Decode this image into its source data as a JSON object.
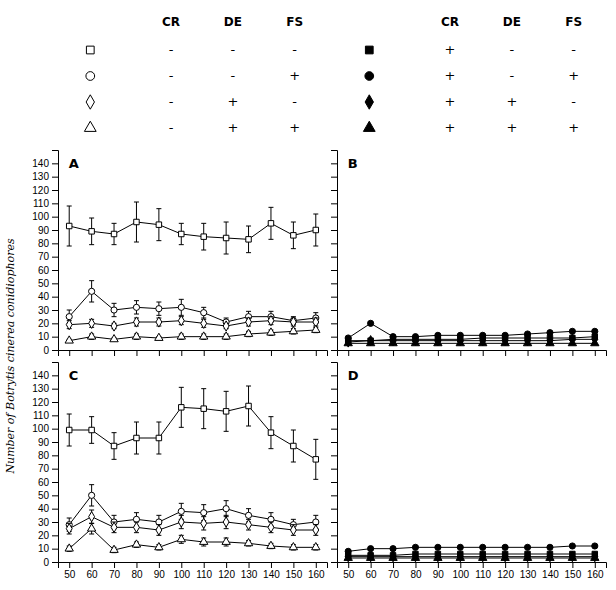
{
  "chart_data": [
    {
      "type": "line",
      "title": "A",
      "ylabel": "Number of Botrytis cinerea conidiophores",
      "x": [
        50,
        60,
        70,
        80,
        90,
        100,
        110,
        120,
        130,
        140,
        150,
        160
      ],
      "xlim": [
        45,
        165
      ],
      "xticks": [
        50,
        60,
        70,
        80,
        90,
        100,
        110,
        120,
        130,
        140,
        150,
        160
      ],
      "ylim": [
        0,
        150
      ],
      "yticks": [
        0,
        10,
        20,
        30,
        40,
        50,
        60,
        70,
        80,
        90,
        100,
        110,
        120,
        130,
        140
      ],
      "tick_labels": "y",
      "series": [
        {
          "marker": "square-open",
          "color": "black",
          "values": [
            93,
            89,
            87,
            96,
            94,
            87,
            85,
            84,
            83,
            95,
            86,
            90
          ],
          "errors": [
            15,
            10,
            8,
            15,
            12,
            8,
            10,
            12,
            10,
            12,
            10,
            12
          ]
        },
        {
          "marker": "circle-open",
          "color": "black",
          "values": [
            25,
            44,
            30,
            32,
            31,
            32,
            28,
            21,
            25,
            25,
            22,
            24
          ],
          "errors": [
            5,
            8,
            5,
            5,
            5,
            6,
            4,
            3,
            4,
            4,
            3,
            4
          ]
        },
        {
          "marker": "diamond-open",
          "color": "black",
          "values": [
            19,
            20,
            18,
            21,
            21,
            22,
            20,
            18,
            21,
            22,
            21,
            21
          ],
          "errors": [
            3,
            3,
            2,
            3,
            3,
            3,
            3,
            2,
            3,
            3,
            3,
            3
          ]
        },
        {
          "marker": "triangle-up-open",
          "color": "black",
          "values": [
            7,
            10,
            8,
            10,
            9,
            10,
            10,
            10,
            12,
            13,
            14,
            15
          ],
          "errors": [
            1,
            2,
            1,
            2,
            1,
            2,
            2,
            2,
            2,
            2,
            2,
            2
          ]
        }
      ]
    },
    {
      "type": "line",
      "title": "B",
      "x": [
        50,
        60,
        70,
        80,
        90,
        100,
        110,
        120,
        130,
        140,
        150,
        160
      ],
      "xlim": [
        45,
        165
      ],
      "xticks": [
        50,
        60,
        70,
        80,
        90,
        100,
        110,
        120,
        130,
        140,
        150,
        160
      ],
      "ylim": [
        0,
        150
      ],
      "yticks": [
        0,
        10,
        20,
        30,
        40,
        50,
        60,
        70,
        80,
        90,
        100,
        110,
        120,
        130,
        140
      ],
      "tick_labels": false,
      "series": [
        {
          "marker": "square",
          "color": "black",
          "values": [
            7,
            7,
            8,
            8,
            8,
            8,
            9,
            9,
            9,
            9,
            9,
            10
          ]
        },
        {
          "marker": "circle",
          "color": "black",
          "values": [
            9,
            20,
            10,
            10,
            11,
            11,
            11,
            11,
            12,
            13,
            14,
            14
          ]
        },
        {
          "marker": "diamond",
          "color": "black",
          "values": [
            6,
            7,
            7,
            7,
            7,
            7,
            7,
            7,
            7,
            7,
            8,
            8
          ]
        },
        {
          "marker": "triangle-up",
          "color": "black",
          "values": [
            5,
            5,
            5,
            5,
            5,
            5,
            5,
            5,
            5,
            5,
            5,
            5
          ]
        }
      ]
    },
    {
      "type": "line",
      "title": "C",
      "x": [
        50,
        60,
        70,
        80,
        90,
        100,
        110,
        120,
        130,
        140,
        150,
        160
      ],
      "xlim": [
        45,
        165
      ],
      "xticks": [
        50,
        60,
        70,
        80,
        90,
        100,
        110,
        120,
        130,
        140,
        150,
        160
      ],
      "ylim": [
        0,
        150
      ],
      "yticks": [
        0,
        10,
        20,
        30,
        40,
        50,
        60,
        70,
        80,
        90,
        100,
        110,
        120,
        130,
        140
      ],
      "series": [
        {
          "marker": "square-open",
          "color": "black",
          "values": [
            99,
            99,
            87,
            93,
            93,
            116,
            115,
            113,
            117,
            97,
            87,
            77
          ],
          "errors": [
            12,
            10,
            10,
            12,
            12,
            15,
            15,
            15,
            15,
            12,
            12,
            15
          ]
        },
        {
          "marker": "circle-open",
          "color": "black",
          "values": [
            28,
            50,
            30,
            32,
            30,
            38,
            37,
            40,
            35,
            32,
            28,
            30
          ],
          "errors": [
            5,
            8,
            5,
            5,
            5,
            6,
            6,
            6,
            5,
            5,
            4,
            5
          ]
        },
        {
          "marker": "diamond-open",
          "color": "black",
          "values": [
            25,
            34,
            26,
            26,
            24,
            30,
            29,
            30,
            28,
            26,
            24,
            24
          ],
          "errors": [
            4,
            5,
            4,
            4,
            4,
            5,
            5,
            5,
            4,
            4,
            4,
            4
          ]
        },
        {
          "marker": "triangle-up-open",
          "color": "black",
          "values": [
            10,
            25,
            9,
            13,
            11,
            17,
            15,
            15,
            14,
            12,
            11,
            11
          ],
          "errors": [
            2,
            4,
            2,
            2,
            2,
            3,
            3,
            3,
            2,
            2,
            2,
            2
          ]
        }
      ]
    },
    {
      "type": "line",
      "title": "D",
      "x": [
        50,
        60,
        70,
        80,
        90,
        100,
        110,
        120,
        130,
        140,
        150,
        160
      ],
      "xlim": [
        45,
        165
      ],
      "xticks": [
        50,
        60,
        70,
        80,
        90,
        100,
        110,
        120,
        130,
        140,
        150,
        160
      ],
      "ylim": [
        0,
        150
      ],
      "yticks": [
        0,
        10,
        20,
        30,
        40,
        50,
        60,
        70,
        80,
        90,
        100,
        110,
        120,
        130,
        140
      ],
      "tick_labels": "x",
      "series": [
        {
          "marker": "square",
          "color": "black",
          "values": [
            5,
            5,
            5,
            6,
            6,
            6,
            6,
            6,
            6,
            6,
            6,
            6
          ]
        },
        {
          "marker": "circle",
          "color": "black",
          "values": [
            8,
            10,
            10,
            11,
            11,
            11,
            11,
            11,
            11,
            11,
            12,
            12
          ]
        },
        {
          "marker": "diamond",
          "color": "black",
          "values": [
            4,
            4,
            4,
            4,
            4,
            4,
            4,
            4,
            4,
            4,
            4,
            4
          ]
        },
        {
          "marker": "triangle-up",
          "color": "black",
          "values": [
            3,
            3,
            3,
            3,
            3,
            3,
            3,
            3,
            3,
            3,
            3,
            3
          ]
        }
      ]
    }
  ],
  "legends": [
    {
      "header": [
        "CR",
        "DE",
        "FS"
      ],
      "rows": [
        {
          "marker": "square-open",
          "signs": [
            "-",
            "-",
            "-"
          ]
        },
        {
          "marker": "circle-open",
          "signs": [
            "-",
            "-",
            "+"
          ]
        },
        {
          "marker": "diamond-open",
          "signs": [
            "-",
            "+",
            "-"
          ]
        },
        {
          "marker": "triangle-up-open",
          "signs": [
            "-",
            "+",
            "+"
          ]
        }
      ]
    },
    {
      "header": [
        "CR",
        "DE",
        "FS"
      ],
      "rows": [
        {
          "marker": "square",
          "signs": [
            "+",
            "-",
            "-"
          ]
        },
        {
          "marker": "circle",
          "signs": [
            "+",
            "-",
            "+"
          ]
        },
        {
          "marker": "diamond",
          "signs": [
            "+",
            "+",
            "-"
          ]
        },
        {
          "marker": "triangle-up",
          "signs": [
            "+",
            "+",
            "+"
          ]
        }
      ]
    }
  ]
}
